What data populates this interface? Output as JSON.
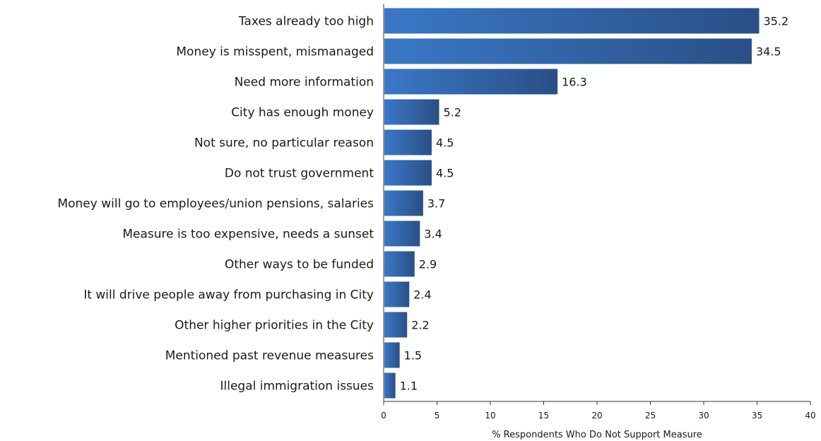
{
  "chart_data": {
    "type": "bar",
    "orientation": "horizontal",
    "categories": [
      "Taxes already too high",
      "Money is misspent, mismanaged",
      "Need more information",
      "City has enough money",
      "Not sure, no particular reason",
      "Do not trust government",
      "Money will go to employees/union pensions, salaries",
      "Measure is too expensive, needs a sunset",
      "Other ways to be funded",
      "It will drive people away from purchasing in City",
      "Other higher priorities in the City",
      "Mentioned past revenue measures",
      "Illegal immigration issues"
    ],
    "values": [
      35.2,
      34.5,
      16.3,
      5.2,
      4.5,
      4.5,
      3.7,
      3.4,
      2.9,
      2.4,
      2.2,
      1.5,
      1.1
    ],
    "value_labels": [
      "35.2",
      "34.5",
      "16.3",
      "5.2",
      "4.5",
      "4.5",
      "3.7",
      "3.4",
      "2.9",
      "2.4",
      "2.2",
      "1.5",
      "1.1"
    ],
    "xlabel": "% Respondents Who Do Not Support Measure",
    "ylabel": "",
    "xlim": [
      0,
      40
    ],
    "xticks": [
      0,
      5,
      10,
      15,
      20,
      25,
      30,
      35,
      40
    ],
    "xtick_labels": [
      "0",
      "5",
      "10",
      "15",
      "20",
      "25",
      "30",
      "35",
      "40"
    ],
    "grid": false,
    "legend": "none",
    "colors": {
      "bar_light": "#3a78c6",
      "bar_dark": "#2a4f86",
      "axis": "#333333"
    }
  }
}
